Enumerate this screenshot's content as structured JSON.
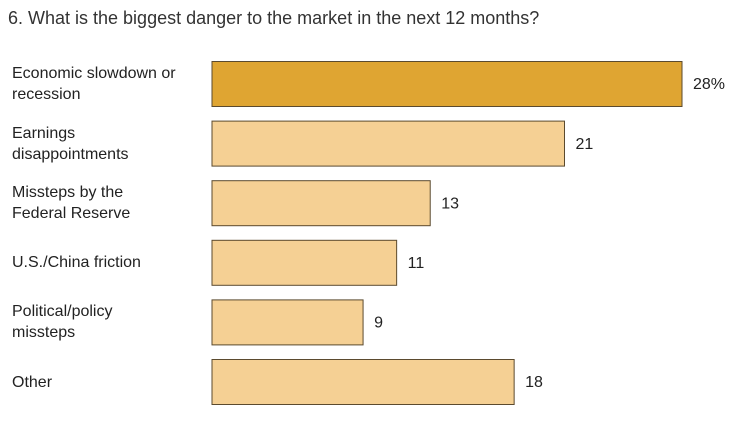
{
  "chart_data": {
    "type": "barh",
    "title": "6. What is the biggest danger to the market in the next 12 months?",
    "categories": [
      "Economic slowdown or recession",
      "Earnings disappointments",
      "Missteps by the Federal Reserve",
      "U.S./China friction",
      "Political/policy missteps",
      "Other"
    ],
    "values": [
      28,
      21,
      13,
      11,
      9,
      18
    ],
    "value_labels": [
      "28%",
      "21",
      "13",
      "11",
      "9",
      "18"
    ],
    "colors": [
      "#dfa532",
      "#f5d094",
      "#f5d094",
      "#f5d094",
      "#f5d094",
      "#f5d094"
    ]
  }
}
